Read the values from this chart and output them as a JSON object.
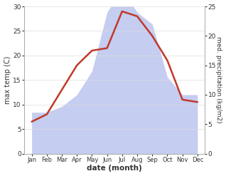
{
  "months": [
    "Jan",
    "Feb",
    "Mar",
    "Apr",
    "May",
    "Jun",
    "Jul",
    "Aug",
    "Sep",
    "Oct",
    "Nov",
    "Dec"
  ],
  "x": [
    1,
    2,
    3,
    4,
    5,
    6,
    7,
    8,
    9,
    10,
    11,
    12
  ],
  "temp": [
    6.5,
    8.0,
    13.0,
    18.0,
    21.0,
    21.5,
    29.0,
    28.0,
    24.0,
    19.0,
    11.0,
    10.5
  ],
  "precip": [
    7.0,
    7.0,
    8.0,
    10.0,
    14.0,
    24.0,
    28.0,
    24.0,
    22.0,
    13.0,
    10.0,
    10.0
  ],
  "temp_color": "#c0392b",
  "precip_fill_color": "#c5cdf0",
  "ylabel_left": "max temp (C)",
  "ylabel_right": "med. precipitation (kg/m2)",
  "xlabel": "date (month)",
  "ylim_left": [
    0,
    30
  ],
  "ylim_right": [
    0,
    25
  ],
  "yticks_left": [
    0,
    5,
    10,
    15,
    20,
    25,
    30
  ],
  "yticks_right": [
    0,
    5,
    10,
    15,
    20,
    25
  ],
  "bg_color": "#ffffff",
  "spine_color": "#aaaaaa",
  "xlim": [
    0.5,
    12.5
  ]
}
